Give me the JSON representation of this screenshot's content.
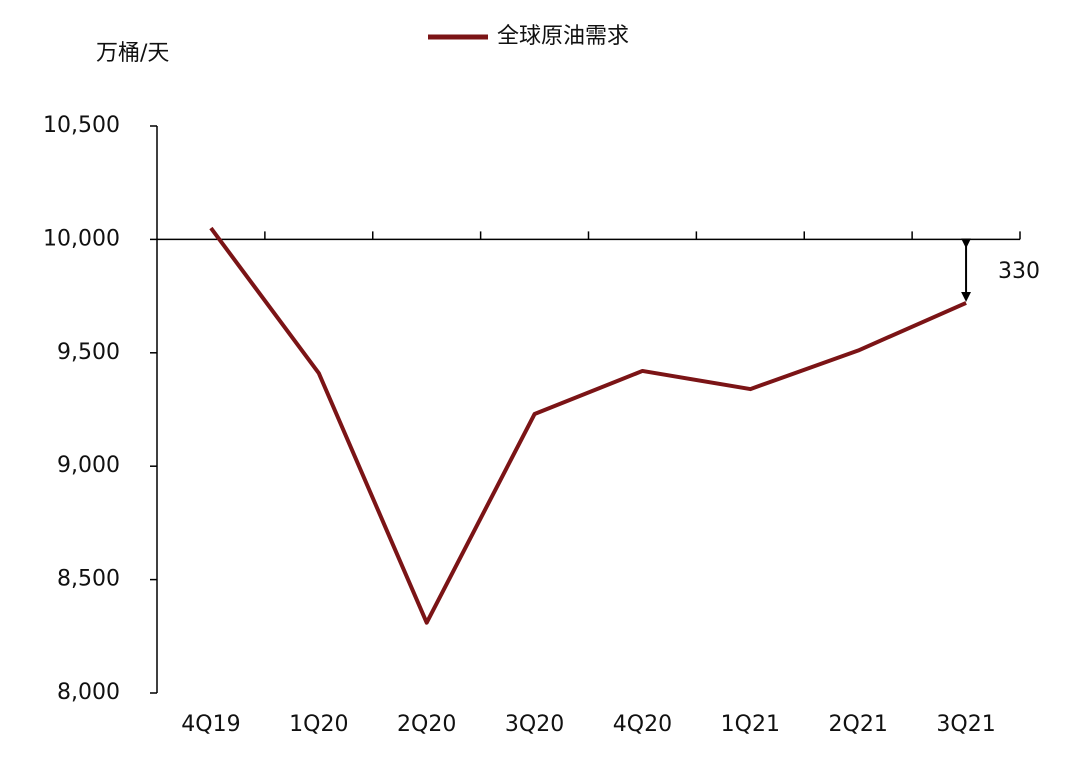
{
  "chart_data": {
    "type": "line",
    "y_label": "万桶/天",
    "categories": [
      "4Q19",
      "1Q20",
      "2Q20",
      "3Q20",
      "4Q20",
      "1Q21",
      "2Q21",
      "3Q21"
    ],
    "series": [
      {
        "name": "全球原油需求",
        "color": "#7b1416",
        "values": [
          10050,
          9410,
          8310,
          9230,
          9420,
          9340,
          9510,
          9720
        ]
      }
    ],
    "ylim": [
      8000,
      10500
    ],
    "yticks": [
      {
        "value": 8000,
        "label": "8,000"
      },
      {
        "value": 8500,
        "label": "8,500"
      },
      {
        "value": 9000,
        "label": "9,000"
      },
      {
        "value": 9500,
        "label": "9,500"
      },
      {
        "value": 10000,
        "label": "10,000"
      },
      {
        "value": 10500,
        "label": "10,500"
      }
    ],
    "xaxis_crosses": 10000,
    "annotation": "330",
    "legend": "top"
  }
}
